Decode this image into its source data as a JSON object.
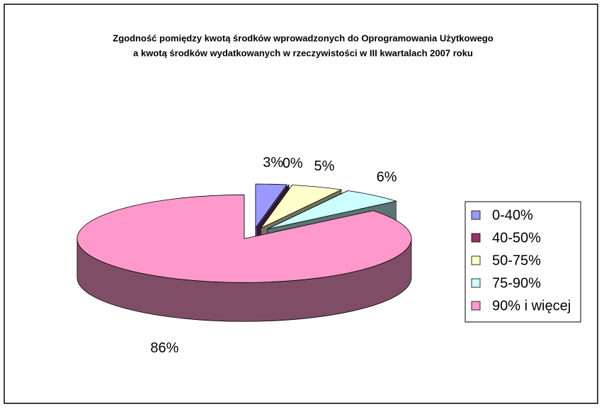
{
  "chart_data": {
    "type": "pie",
    "title": [
      "Zgodność pomiędzy kwotą środków wprowadzonych do Oprogramowania Użytkowego",
      "a kwotą środków wydatkowanych w rzeczywistości w III kwartalach 2007 roku"
    ],
    "categories": [
      "0-40%",
      "40-50%",
      "50-75%",
      "75-90%",
      "90% i więcej"
    ],
    "values": [
      3,
      0,
      5,
      6,
      86
    ],
    "value_labels": [
      "3%",
      "0%",
      "5%",
      "6%",
      "86%"
    ],
    "colors": [
      "#9999ff",
      "#993366",
      "#ffffcc",
      "#ccffff",
      "#ff99cc"
    ],
    "legend": "right"
  }
}
